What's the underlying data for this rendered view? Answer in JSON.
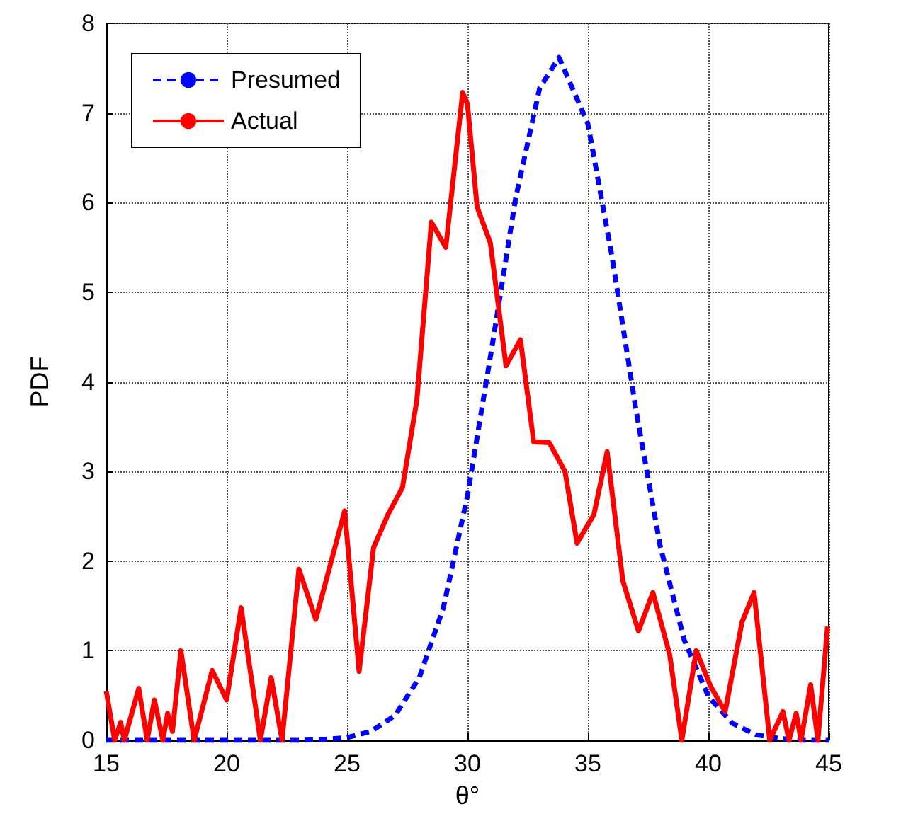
{
  "chart_data": {
    "type": "line",
    "xlabel": "θ°",
    "ylabel": "PDF",
    "xlim": [
      15,
      45
    ],
    "xticks": [
      15,
      20,
      25,
      30,
      35,
      40,
      45
    ],
    "ylim": [
      0,
      8
    ],
    "yticks": [
      0,
      1,
      2,
      3,
      4,
      5,
      6,
      7,
      8
    ],
    "grid": true,
    "legend": "top left",
    "marker": "none",
    "series": [
      {
        "name": "Presumed",
        "color": "#0000ff",
        "line_style": "dashed",
        "x": [
          15,
          16,
          17,
          18,
          19,
          20,
          21,
          22,
          23,
          24,
          25,
          26,
          27,
          28,
          29,
          30,
          31,
          32,
          33,
          33.8,
          35,
          36,
          37,
          38,
          39,
          40,
          41,
          42,
          43,
          44,
          45
        ],
        "values": [
          0,
          0,
          0,
          0,
          0,
          0,
          0,
          0,
          0,
          0.01,
          0.03,
          0.1,
          0.28,
          0.7,
          1.48,
          2.73,
          4.36,
          6.05,
          7.28,
          7.62,
          6.88,
          5.4,
          3.68,
          2.17,
          1.12,
          0.49,
          0.19,
          0.06,
          0.02,
          0,
          0
        ]
      },
      {
        "name": "Actual",
        "color": "#ff0000",
        "line_style": "solid",
        "x": [
          15,
          15.35,
          15.6,
          15.75,
          16.35,
          16.7,
          17,
          17.35,
          17.55,
          17.75,
          18.1,
          18.65,
          19.4,
          20,
          20.6,
          21.4,
          21.85,
          22.3,
          23,
          23.7,
          24.9,
          25.5,
          26.1,
          26.7,
          27.3,
          27.9,
          28.5,
          29.1,
          29.8,
          30,
          30.4,
          30.95,
          31.6,
          32.2,
          32.75,
          33.4,
          34.05,
          34.55,
          35.25,
          35.8,
          36.45,
          37.1,
          37.7,
          38.4,
          38.9,
          39.5,
          40.1,
          40.7,
          41.4,
          41.9,
          42.55,
          43.1,
          43.35,
          43.65,
          43.85,
          44.25,
          44.55,
          44.95
        ],
        "values": [
          0.55,
          0,
          0.2,
          0,
          0.58,
          0,
          0.45,
          0,
          0.3,
          0.1,
          1,
          0,
          0.78,
          0.45,
          1.48,
          0,
          0.7,
          0,
          1.91,
          1.35,
          2.56,
          0.77,
          2.15,
          2.52,
          2.82,
          3.8,
          5.78,
          5.5,
          7.23,
          7.1,
          5.95,
          5.55,
          4.18,
          4.47,
          3.33,
          3.32,
          3,
          2.2,
          2.52,
          3.22,
          1.78,
          1.22,
          1.65,
          0.95,
          0,
          1,
          0.6,
          0.32,
          1.32,
          1.65,
          0,
          0.32,
          0,
          0.3,
          0,
          0.62,
          0,
          1.27
        ]
      }
    ]
  }
}
